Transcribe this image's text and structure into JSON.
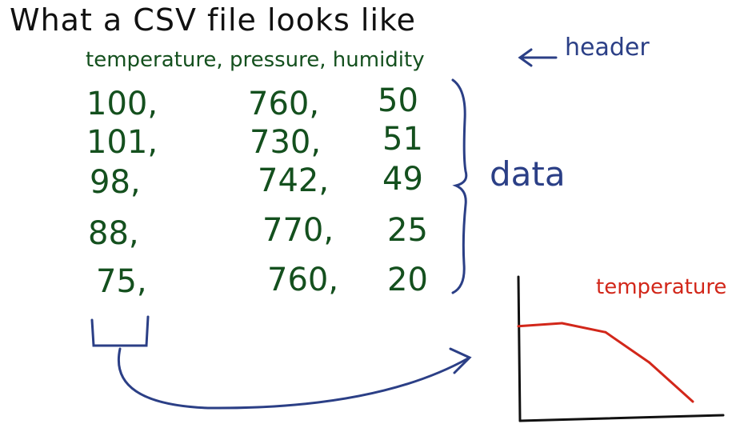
{
  "title": "What a CSV file looks like",
  "header_row": "temperature, pressure, humidity",
  "annotations": {
    "header": "header",
    "data": "data"
  },
  "rows": [
    [
      "100,",
      "760,",
      "50"
    ],
    [
      "101,",
      "730,",
      "51"
    ],
    [
      "98,",
      "742,",
      "49"
    ],
    [
      "88,",
      "770,",
      "25"
    ],
    [
      "75,",
      "760,",
      "20"
    ]
  ],
  "colors": {
    "black_ink": "#111111",
    "green_ink": "#14501e",
    "blue_ink": "#2b3f86",
    "red_ink": "#d2271a"
  },
  "chart_data": {
    "type": "line",
    "title": "temperature",
    "xlabel": "",
    "ylabel": "",
    "series": [
      {
        "values": [
          100,
          101,
          98,
          88,
          75
        ]
      }
    ],
    "grid": false
  }
}
